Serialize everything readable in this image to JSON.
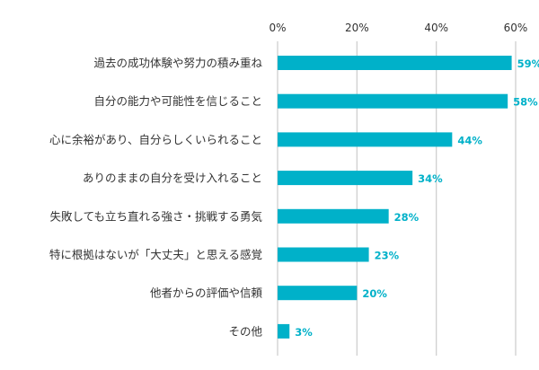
{
  "chart_data": {
    "type": "bar",
    "orientation": "horizontal",
    "title": "",
    "xlabel": "",
    "ylabel": "",
    "xlim": [
      0,
      60
    ],
    "ticks": [
      0,
      20,
      40,
      60
    ],
    "tick_labels": [
      "0%",
      "20%",
      "40%",
      "60%"
    ],
    "grid": true,
    "bar_color": "#00b1c9",
    "categories": [
      "過去の成功体験や努力の積み重ね",
      "自分の能力や可能性を信じること",
      "心に余裕があり、自分らしくいられること",
      "ありのままの自分を受け入れること",
      "失敗しても立ち直れる強さ・挑戦する勇気",
      "特に根拠はないが「大丈夫」と思える感覚",
      "他者からの評価や信頼",
      "その他"
    ],
    "values": [
      59,
      58,
      44,
      34,
      28,
      23,
      20,
      3
    ],
    "value_labels": [
      "59%",
      "58%",
      "44%",
      "34%",
      "28%",
      "23%",
      "20%",
      "3%"
    ]
  }
}
